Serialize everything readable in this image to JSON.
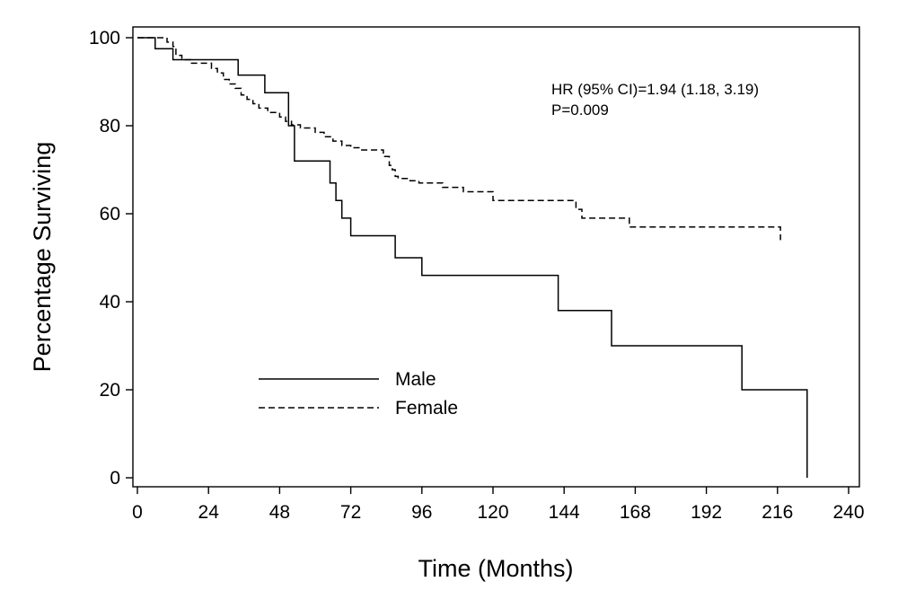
{
  "chart_data": {
    "type": "line",
    "title": "",
    "xlabel": "Time (Months)",
    "ylabel": "Percentage Surviving",
    "xlim": [
      0,
      240
    ],
    "ylim": [
      0,
      100
    ],
    "xticks": [
      0,
      24,
      48,
      72,
      96,
      120,
      144,
      168,
      192,
      216,
      240
    ],
    "yticks": [
      0,
      20,
      40,
      60,
      80,
      100
    ],
    "grid": false,
    "legend_placement": "lower-left",
    "annotations": [
      "HR (95% CI)=1.94 (1.18, 3.19)",
      "P=0.009"
    ],
    "series": [
      {
        "name": "Male",
        "style": "solid",
        "x": [
          0,
          6,
          12,
          34,
          43,
          51,
          53,
          65,
          67,
          69,
          72,
          76,
          87,
          96,
          142,
          160,
          204,
          226,
          226
        ],
        "y": [
          100,
          97.5,
          95,
          91.5,
          87.5,
          80,
          72,
          67,
          63,
          59,
          55,
          55,
          50,
          46,
          38,
          30,
          20,
          20,
          0
        ]
      },
      {
        "name": "Female",
        "style": "dashed",
        "x": [
          0,
          10,
          12,
          13,
          15,
          18,
          25,
          27,
          29,
          31,
          33,
          35,
          37,
          39,
          41,
          44,
          48,
          50,
          52,
          55,
          60,
          63,
          66,
          69,
          72,
          75,
          83,
          85,
          86,
          87,
          88,
          92,
          95,
          103,
          110,
          120,
          148,
          150,
          166,
          217,
          217
        ],
        "y": [
          100,
          99,
          98,
          96,
          95,
          94.2,
          93,
          92,
          90.5,
          89.5,
          88.5,
          87,
          86,
          85,
          84,
          83,
          82,
          81,
          80.2,
          79.5,
          78.5,
          77.5,
          76.5,
          75.5,
          75,
          74.5,
          73,
          71,
          70,
          68.5,
          68,
          67.5,
          67,
          66,
          65,
          63,
          61,
          59,
          57,
          57,
          54
        ]
      }
    ]
  }
}
